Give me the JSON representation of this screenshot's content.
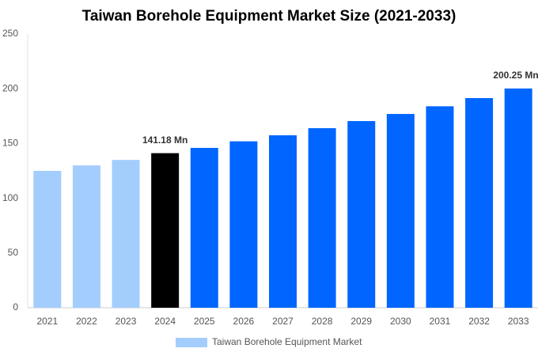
{
  "chart_data": {
    "type": "bar",
    "title": "Taiwan Borehole Equipment Market Size (2021-2033)",
    "categories": [
      "2021",
      "2022",
      "2023",
      "2024",
      "2025",
      "2026",
      "2027",
      "2028",
      "2029",
      "2030",
      "2031",
      "2032",
      "2033"
    ],
    "series": [
      {
        "name": "Taiwan Borehole Equipment Market",
        "color": "#a3cdfc",
        "values": [
          125,
          130,
          135,
          141.18,
          146,
          152,
          157.5,
          164,
          170.5,
          177,
          184,
          191.5,
          200.25
        ],
        "colors": [
          "#a3cdfc",
          "#a3cdfc",
          "#a3cdfc",
          "#000000",
          "#0066ff",
          "#0066ff",
          "#0066ff",
          "#0066ff",
          "#0066ff",
          "#0066ff",
          "#0066ff",
          "#0066ff",
          "#0066ff"
        ],
        "value_labels": [
          null,
          null,
          null,
          "141.18 Mn",
          null,
          null,
          null,
          null,
          null,
          null,
          null,
          null,
          "200.25 Mn"
        ]
      }
    ],
    "ylim": [
      0,
      250
    ],
    "yticks": [
      0,
      50,
      100,
      150,
      200,
      250
    ],
    "grid": false,
    "legend": "bottom"
  }
}
